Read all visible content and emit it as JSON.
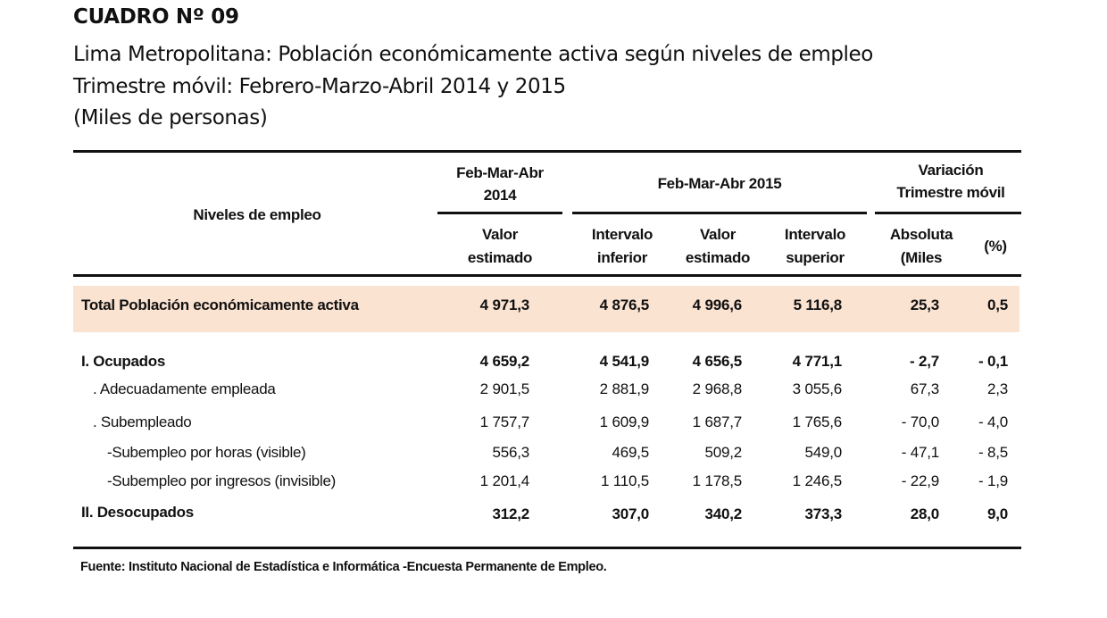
{
  "document": {
    "title": "CUADRO Nº 09",
    "subtitle_lines": [
      "Lima Metropolitana: Población económicamente activa según niveles de empleo",
      "Trimestre móvil: Febrero-Marzo-Abril 2014 y 2015",
      "(Miles de personas)"
    ],
    "source": "Fuente: Instituto Nacional de Estadística e Informática -Encuesta Permanente de Empleo."
  },
  "table": {
    "header": {
      "niveles": "Niveles de empleo",
      "period_2014_line1": "Feb-Mar-Abr",
      "period_2014_line2": "2014",
      "period_2015": "Feb-Mar-Abr 2015",
      "variacion_line1": "Variación",
      "variacion_line2": "Trimestre móvil",
      "valor_line1": "Valor",
      "estimado": "estimado",
      "intervalo": "Intervalo",
      "inferior": "inferior",
      "superior": "superior",
      "absoluta": "Absoluta",
      "miles": "(Miles",
      "pct": "(%)"
    },
    "rows": [
      {
        "label": "Total Población económicamente activa",
        "v2014": "4 971,3",
        "inf": "4 876,5",
        "est": "4 996,6",
        "sup": "5 116,8",
        "abs": "25,3",
        "pct": "0,5"
      },
      {
        "label": "I. Ocupados",
        "v2014": "4 659,2",
        "inf": "4 541,9",
        "est": "4 656,5",
        "sup": "4 771,1",
        "abs": "- 2,7",
        "pct": "- 0,1"
      },
      {
        "label": ". Adecuadamente empleada",
        "v2014": "2 901,5",
        "inf": "2 881,9",
        "est": "2 968,8",
        "sup": "3 055,6",
        "abs": "67,3",
        "pct": "2,3"
      },
      {
        "label": ". Subempleado",
        "v2014": "1 757,7",
        "inf": "1 609,9",
        "est": "1 687,7",
        "sup": "1 765,6",
        "abs": "- 70,0",
        "pct": "- 4,0"
      },
      {
        "label": "-Subempleo por horas (visible)",
        "v2014": "556,3",
        "inf": "469,5",
        "est": "509,2",
        "sup": "549,0",
        "abs": "- 47,1",
        "pct": "- 8,5"
      },
      {
        "label": "-Subempleo por ingresos (invisible)",
        "v2014": "1 201,4",
        "inf": "1 110,5",
        "est": "1 178,5",
        "sup": "1 246,5",
        "abs": "- 22,9",
        "pct": "- 1,9"
      },
      {
        "label": "II. Desocupados",
        "v2014": "312,2",
        "inf": "307,0",
        "est": "340,2",
        "sup": "373,3",
        "abs": "28,0",
        "pct": "9,0"
      }
    ]
  },
  "colors": {
    "total_band": "#fbe3d2",
    "text": "#111111"
  }
}
